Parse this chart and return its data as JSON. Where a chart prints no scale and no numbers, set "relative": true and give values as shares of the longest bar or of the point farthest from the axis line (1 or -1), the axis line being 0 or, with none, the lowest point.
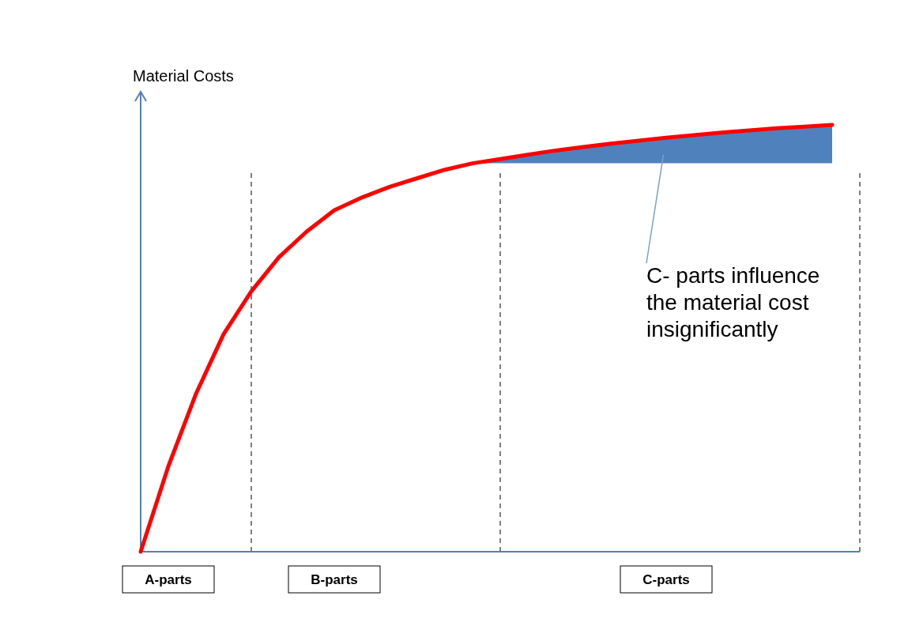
{
  "chart_data": {
    "type": "line",
    "ylabel": "Material Costs",
    "relative": true,
    "categories": [
      null,
      "A-parts",
      null,
      null,
      null,
      null,
      null,
      "B-parts",
      null,
      null,
      null,
      null,
      null,
      null,
      null,
      null,
      null,
      null,
      null,
      "C-parts",
      null,
      null,
      null,
      null,
      null,
      null,
      null
    ],
    "series": [
      {
        "color": "#ff0000",
        "values": [
          0,
          0.2,
          0.37,
          0.51,
          0.61,
          0.69,
          0.75,
          0.8,
          0.83,
          0.855,
          0.875,
          0.895,
          0.91,
          0.92,
          0.93,
          0.94,
          0.948,
          0.956,
          0.963,
          0.97,
          0.976,
          0.982,
          0.987,
          0.992,
          0.996,
          1,
          null
        ],
        "lower": [
          null,
          null,
          null,
          null,
          null,
          null,
          null,
          null,
          null,
          null,
          null,
          null,
          0.91,
          0.91,
          0.91,
          0.91,
          0.91,
          0.91,
          0.91,
          0.91,
          0.91,
          0.91,
          0.91,
          0.91,
          0.91,
          0.91,
          null
        ],
        "upper": [
          null,
          null,
          null,
          null,
          null,
          null,
          null,
          null,
          null,
          null,
          null,
          null,
          0.91,
          0.92,
          0.93,
          0.94,
          0.948,
          0.956,
          0.963,
          0.97,
          0.976,
          0.982,
          0.987,
          0.992,
          0.996,
          1,
          null
        ]
      }
    ],
    "annotations": [
      "C- parts influence the material cost insignificantly"
    ]
  }
}
